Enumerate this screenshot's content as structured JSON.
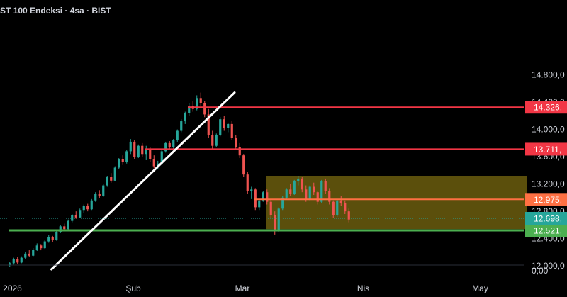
{
  "header": {
    "title": "ST 100 Endeksi · 4sa · BIST"
  },
  "colors": {
    "background": "#000000",
    "text": "#d1d4dc",
    "up": "#26a69a",
    "down": "#ef5350",
    "resistance": "#f23645",
    "pivot": "#ff7043",
    "support": "#4caf50",
    "zone": "#7a6a10",
    "trendline": "#ffffff"
  },
  "chart_data": {
    "type": "candlestick",
    "symbol": "ST 100 Endeksi",
    "interval": "4sa",
    "exchange": "BIST",
    "x_labels": [
      {
        "label": "2026",
        "t": 1
      },
      {
        "label": "Şub",
        "t": 32
      },
      {
        "label": "Mar",
        "t": 60
      },
      {
        "label": "Nis",
        "t": 91
      },
      {
        "label": "May",
        "t": 121
      }
    ],
    "y_ticks": [
      "14.800,0",
      "14.400,0",
      "14.000,0",
      "13.600,0",
      "13.200,0",
      "12.800,0",
      "12.400,0",
      "12.000,0"
    ],
    "y_tick_values": [
      14800,
      14400,
      14000,
      13600,
      13200,
      12800,
      12400,
      12000
    ],
    "volume_axis_label": "0,00",
    "ylim": [
      11950,
      14900
    ],
    "current_price": {
      "label": "12.698,",
      "value": 12698,
      "color": "#26a69a"
    },
    "levels": [
      {
        "label": "14.326,",
        "value": 14326,
        "color": "#f23645",
        "from_t": 46
      },
      {
        "label": "13.711,",
        "value": 13711,
        "color": "#f23645",
        "from_t": 35
      },
      {
        "label": "12.975,",
        "value": 12975,
        "color": "#ff7043",
        "from_t": 63
      },
      {
        "label": "12.521,",
        "value": 12521,
        "color": "#4caf50",
        "from_t": 0
      }
    ],
    "zone": {
      "from_t": 66,
      "to_t": 133,
      "top": 13320,
      "bottom": 12540
    },
    "trendline": {
      "t1": 11,
      "v1": 11950,
      "t2": 58,
      "v2": 14540
    },
    "candles": [
      [
        12010,
        12060,
        11990,
        12040
      ],
      [
        12040,
        12120,
        12020,
        12100
      ],
      [
        12100,
        12130,
        12030,
        12050
      ],
      [
        12050,
        12140,
        12040,
        12120
      ],
      [
        12120,
        12210,
        12100,
        12180
      ],
      [
        12180,
        12230,
        12130,
        12150
      ],
      [
        12150,
        12260,
        12140,
        12240
      ],
      [
        12240,
        12330,
        12220,
        12300
      ],
      [
        12300,
        12320,
        12230,
        12260
      ],
      [
        12260,
        12380,
        12250,
        12360
      ],
      [
        12360,
        12450,
        12340,
        12420
      ],
      [
        12420,
        12440,
        12350,
        12380
      ],
      [
        12380,
        12520,
        12370,
        12500
      ],
      [
        12500,
        12600,
        12480,
        12580
      ],
      [
        12580,
        12620,
        12520,
        12540
      ],
      [
        12540,
        12680,
        12530,
        12660
      ],
      [
        12660,
        12760,
        12640,
        12740
      ],
      [
        12740,
        12800,
        12690,
        12710
      ],
      [
        12710,
        12840,
        12700,
        12820
      ],
      [
        12820,
        12900,
        12780,
        12880
      ],
      [
        12880,
        12910,
        12800,
        12830
      ],
      [
        12830,
        12980,
        12820,
        12960
      ],
      [
        12960,
        13080,
        12940,
        13060
      ],
      [
        13060,
        13110,
        12990,
        13020
      ],
      [
        13020,
        13200,
        13010,
        13180
      ],
      [
        13180,
        13320,
        13160,
        13300
      ],
      [
        13300,
        13360,
        13220,
        13250
      ],
      [
        13250,
        13460,
        13240,
        13440
      ],
      [
        13440,
        13580,
        13420,
        13560
      ],
      [
        13560,
        13620,
        13480,
        13520
      ],
      [
        13520,
        13700,
        13500,
        13680
      ],
      [
        13680,
        13860,
        13640,
        13820
      ],
      [
        13820,
        13840,
        13560,
        13600
      ],
      [
        13600,
        13780,
        13580,
        13760
      ],
      [
        13760,
        13800,
        13600,
        13640
      ],
      [
        13640,
        13760,
        13550,
        13720
      ],
      [
        13720,
        13740,
        13520,
        13560
      ],
      [
        13560,
        13620,
        13430,
        13460
      ],
      [
        13460,
        13540,
        13420,
        13500
      ],
      [
        13500,
        13700,
        13490,
        13680
      ],
      [
        13680,
        13820,
        13660,
        13800
      ],
      [
        13800,
        13830,
        13700,
        13740
      ],
      [
        13740,
        13860,
        13720,
        13840
      ],
      [
        13840,
        14000,
        13820,
        13980
      ],
      [
        13980,
        14150,
        13960,
        14120
      ],
      [
        14120,
        14260,
        14080,
        14240
      ],
      [
        14240,
        14380,
        14200,
        14340
      ],
      [
        14340,
        14420,
        14260,
        14300
      ],
      [
        14300,
        14500,
        14280,
        14460
      ],
      [
        14460,
        14540,
        14350,
        14380
      ],
      [
        14380,
        14420,
        14180,
        14220
      ],
      [
        14220,
        14300,
        13880,
        13920
      ],
      [
        13920,
        13980,
        13720,
        13760
      ],
      [
        13760,
        13940,
        13740,
        13920
      ],
      [
        13920,
        14180,
        13900,
        14150
      ],
      [
        14150,
        14200,
        13980,
        14020
      ],
      [
        14020,
        14100,
        13960,
        14080
      ],
      [
        14080,
        14120,
        13840,
        13880
      ],
      [
        13880,
        13920,
        13700,
        13740
      ],
      [
        13740,
        13800,
        13580,
        13620
      ],
      [
        13620,
        13640,
        13300,
        13340
      ],
      [
        13340,
        13380,
        13060,
        13100
      ],
      [
        13100,
        13160,
        12980,
        13120
      ],
      [
        13120,
        13140,
        12820,
        12860
      ],
      [
        12860,
        12980,
        12820,
        12960
      ],
      [
        12960,
        13100,
        12940,
        13080
      ],
      [
        13080,
        13120,
        12900,
        12940
      ],
      [
        12940,
        12980,
        12700,
        12740
      ],
      [
        12740,
        12800,
        12460,
        12520
      ],
      [
        12520,
        12860,
        12500,
        12840
      ],
      [
        12840,
        13020,
        12820,
        13000
      ],
      [
        13000,
        13140,
        12980,
        13120
      ],
      [
        13120,
        13200,
        13020,
        13060
      ],
      [
        13060,
        13260,
        13040,
        13240
      ],
      [
        13240,
        13320,
        13180,
        13280
      ],
      [
        13280,
        13300,
        13080,
        13120
      ],
      [
        13120,
        13180,
        12940,
        12980
      ],
      [
        12980,
        13180,
        12960,
        13160
      ],
      [
        13160,
        13220,
        13040,
        13080
      ],
      [
        13080,
        13100,
        12900,
        12940
      ],
      [
        12940,
        13260,
        12920,
        13240
      ],
      [
        13240,
        13280,
        13060,
        13100
      ],
      [
        13100,
        13140,
        12900,
        12940
      ],
      [
        12940,
        12960,
        12700,
        12740
      ],
      [
        12740,
        12980,
        12720,
        12960
      ],
      [
        12960,
        13020,
        12880,
        12920
      ],
      [
        12920,
        12960,
        12760,
        12800
      ],
      [
        12800,
        12840,
        12640,
        12680
      ]
    ]
  }
}
